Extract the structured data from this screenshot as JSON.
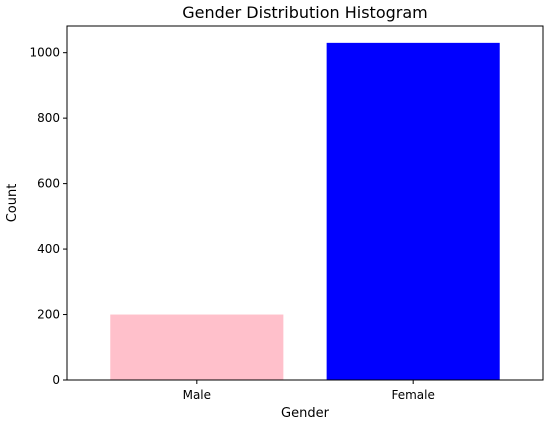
{
  "chart_data": {
    "type": "bar",
    "title": "Gender Distribution Histogram",
    "xlabel": "Gender",
    "ylabel": "Count",
    "categories": [
      "Male",
      "Female"
    ],
    "values": [
      200,
      1030
    ],
    "colors": [
      "#ffc0cb",
      "#0000ff"
    ],
    "ylim": [
      0,
      1081.5
    ],
    "yticks": [
      0,
      200,
      400,
      600,
      800,
      1000
    ],
    "grid": false
  }
}
